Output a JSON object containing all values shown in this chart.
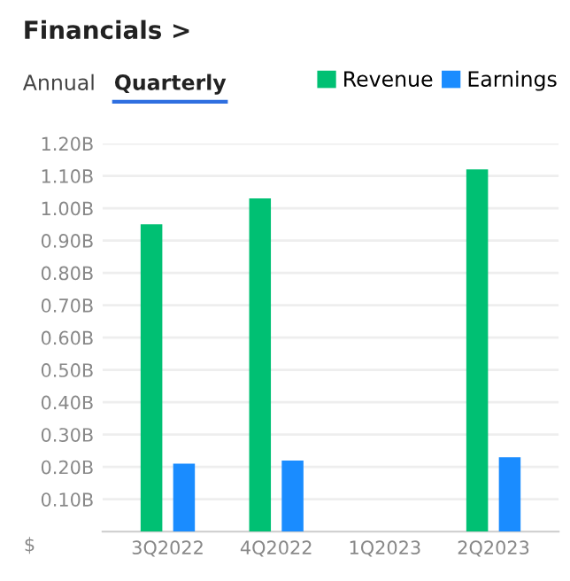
{
  "chart_data": {
    "type": "bar",
    "title": "Financials >",
    "ylabel": "$",
    "annotations": [
      "Annual",
      "Quarterly"
    ],
    "categories": [
      "3Q2022",
      "4Q2022",
      "1Q2023",
      "2Q2023"
    ],
    "series": [
      {
        "name": "Revenue",
        "color": "#00c073",
        "values": [
          0.95,
          1.03,
          null,
          1.12
        ]
      },
      {
        "name": "Earnings",
        "color": "#1a8cff",
        "values": [
          0.21,
          0.22,
          null,
          0.23
        ]
      }
    ],
    "ylim": [
      0,
      1.2
    ],
    "yticks": [
      {
        "value": 0.1,
        "label": "0.10B"
      },
      {
        "value": 0.2,
        "label": "0.20B"
      },
      {
        "value": 0.3,
        "label": "0.30B"
      },
      {
        "value": 0.4,
        "label": "0.40B"
      },
      {
        "value": 0.5,
        "label": "0.50B"
      },
      {
        "value": 0.6,
        "label": "0.60B"
      },
      {
        "value": 0.7,
        "label": "0.70B"
      },
      {
        "value": 0.8,
        "label": "0.80B"
      },
      {
        "value": 0.9,
        "label": "0.90B"
      },
      {
        "value": 1.0,
        "label": "1.00B"
      },
      {
        "value": 1.1,
        "label": "1.10B"
      },
      {
        "value": 1.2,
        "label": "1.20B"
      }
    ],
    "grid": "y",
    "legend": "top right"
  }
}
